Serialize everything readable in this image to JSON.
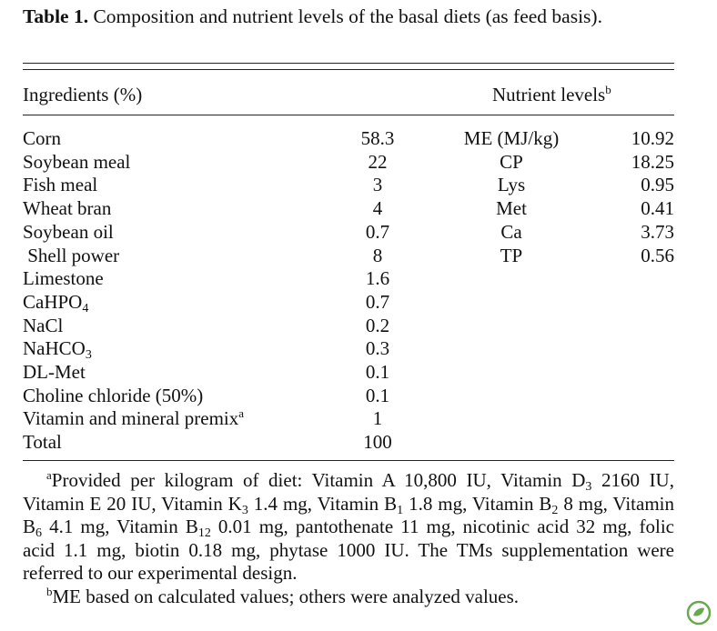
{
  "caption": {
    "label": "Table 1.",
    "text": "Composition and nutrient levels of the basal diets (as feed basis)."
  },
  "header": {
    "ingredients": "Ingredients (%)",
    "nutrients": "Nutrient levels",
    "nutrients_note": "b"
  },
  "ingredients": [
    {
      "name": [
        "Corn"
      ],
      "value": 58.3
    },
    {
      "name": [
        "Soybean meal"
      ],
      "value": 22
    },
    {
      "name": [
        "Fish meal"
      ],
      "value": 3
    },
    {
      "name": [
        "Wheat bran"
      ],
      "value": 4
    },
    {
      "name": [
        "Soybean oil"
      ],
      "value": 0.7
    },
    {
      "name": [
        " Shell power"
      ],
      "value": 8
    },
    {
      "name": [
        "Limestone"
      ],
      "value": 1.6
    },
    {
      "name": [
        "CaHPO",
        "4"
      ],
      "value": 0.7
    },
    {
      "name": [
        "NaCl"
      ],
      "value": 0.2
    },
    {
      "name": [
        "NaHCO",
        "3"
      ],
      "value": 0.3
    },
    {
      "name": [
        "DL-Met"
      ],
      "value": 0.1
    },
    {
      "name": [
        "Choline chloride (50%)"
      ],
      "value": 0.1
    },
    {
      "name": [
        "Vitamin and mineral premix"
      ],
      "note": "a",
      "value": 1
    },
    {
      "name": [
        "Total"
      ],
      "value": 100
    }
  ],
  "nutrients": [
    {
      "name": "ME (MJ/kg)",
      "value": 10.92
    },
    {
      "name": "CP",
      "value": 18.25
    },
    {
      "name": "Lys",
      "value": 0.95
    },
    {
      "name": "Met",
      "value": 0.41
    },
    {
      "name": "Ca",
      "value": 3.73
    },
    {
      "name": "TP",
      "value": 0.56
    }
  ],
  "footnotes": [
    {
      "mark": "a",
      "runs": [
        "Provided per kilogram of diet: Vitamin A 10,800 IU, Vitamin D",
        "3",
        " 2160 IU, Vitamin E 20 IU, Vitamin K",
        "3",
        " 1.4 mg, Vitamin B",
        "1",
        " 1.8 mg, Vitamin B",
        "2",
        " 8 mg, Vitamin B",
        "6",
        " 4.1 mg, Vitamin B",
        "12",
        " 0.01 mg, pantothenate 11 mg, nicotinic acid 32 mg, folic acid 1.1 mg, biotin 0.18 mg, phytase 1000 IU. The TMs supplementation were referred to our experimental design."
      ]
    },
    {
      "mark": "b",
      "runs": [
        "ME based on calculated values; others were analyzed values."
      ]
    }
  ]
}
